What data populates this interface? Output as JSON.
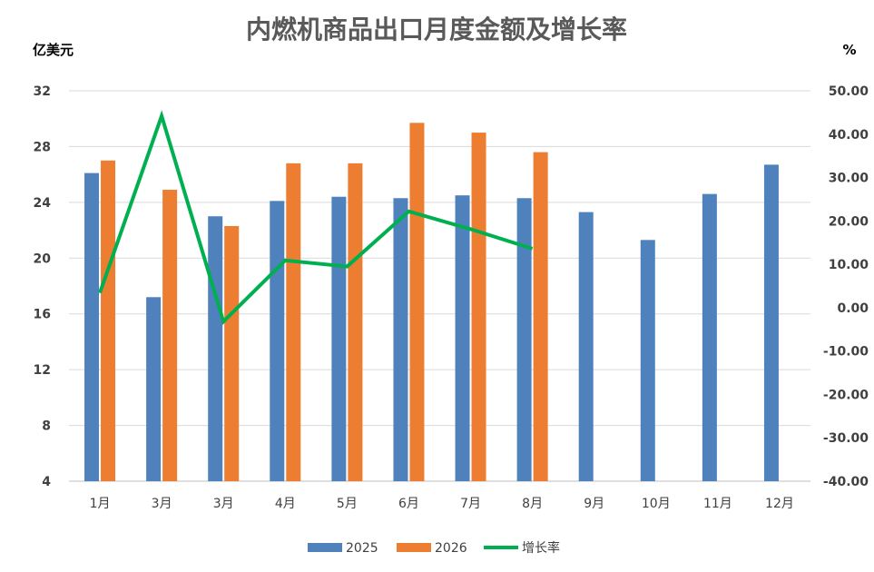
{
  "chart_data": {
    "type": "bar",
    "title": "内燃机商品出口月度金额及增长率",
    "y_left_label": "亿美元",
    "y_right_label": "%",
    "categories": [
      "1月",
      "3月",
      "3月",
      "4月",
      "5月",
      "6月",
      "7月",
      "8月",
      "9月",
      "10月",
      "11月",
      "12月"
    ],
    "y_left_lim": [
      4,
      32
    ],
    "y_left_ticks": [
      "4",
      "8",
      "12",
      "16",
      "20",
      "24",
      "28",
      "32"
    ],
    "y_right_lim": [
      -40,
      50
    ],
    "y_right_ticks": [
      "-40.00",
      "-30.00",
      "-20.00",
      "-10.00",
      "0.00",
      "10.00",
      "20.00",
      "30.00",
      "40.00",
      "50.00"
    ],
    "grid": true,
    "legend_position": "bottom",
    "series": [
      {
        "name": "2025",
        "kind": "bar",
        "axis": "left",
        "color": "#4f81bd",
        "values": [
          26.1,
          17.2,
          23.0,
          24.1,
          24.4,
          24.3,
          24.5,
          24.3,
          23.3,
          21.3,
          24.6,
          26.7
        ]
      },
      {
        "name": "2026",
        "kind": "bar",
        "axis": "left",
        "color": "#ed7d31",
        "values": [
          27.0,
          24.9,
          22.3,
          26.8,
          26.8,
          29.7,
          29.0,
          27.6,
          null,
          null,
          null,
          null
        ]
      },
      {
        "name": "增长率",
        "kind": "line",
        "axis": "right",
        "color": "#00b050",
        "values": [
          3.4,
          44.2,
          -3.2,
          10.9,
          9.5,
          22.2,
          18.1,
          13.6,
          null,
          null,
          null,
          null
        ]
      }
    ]
  }
}
